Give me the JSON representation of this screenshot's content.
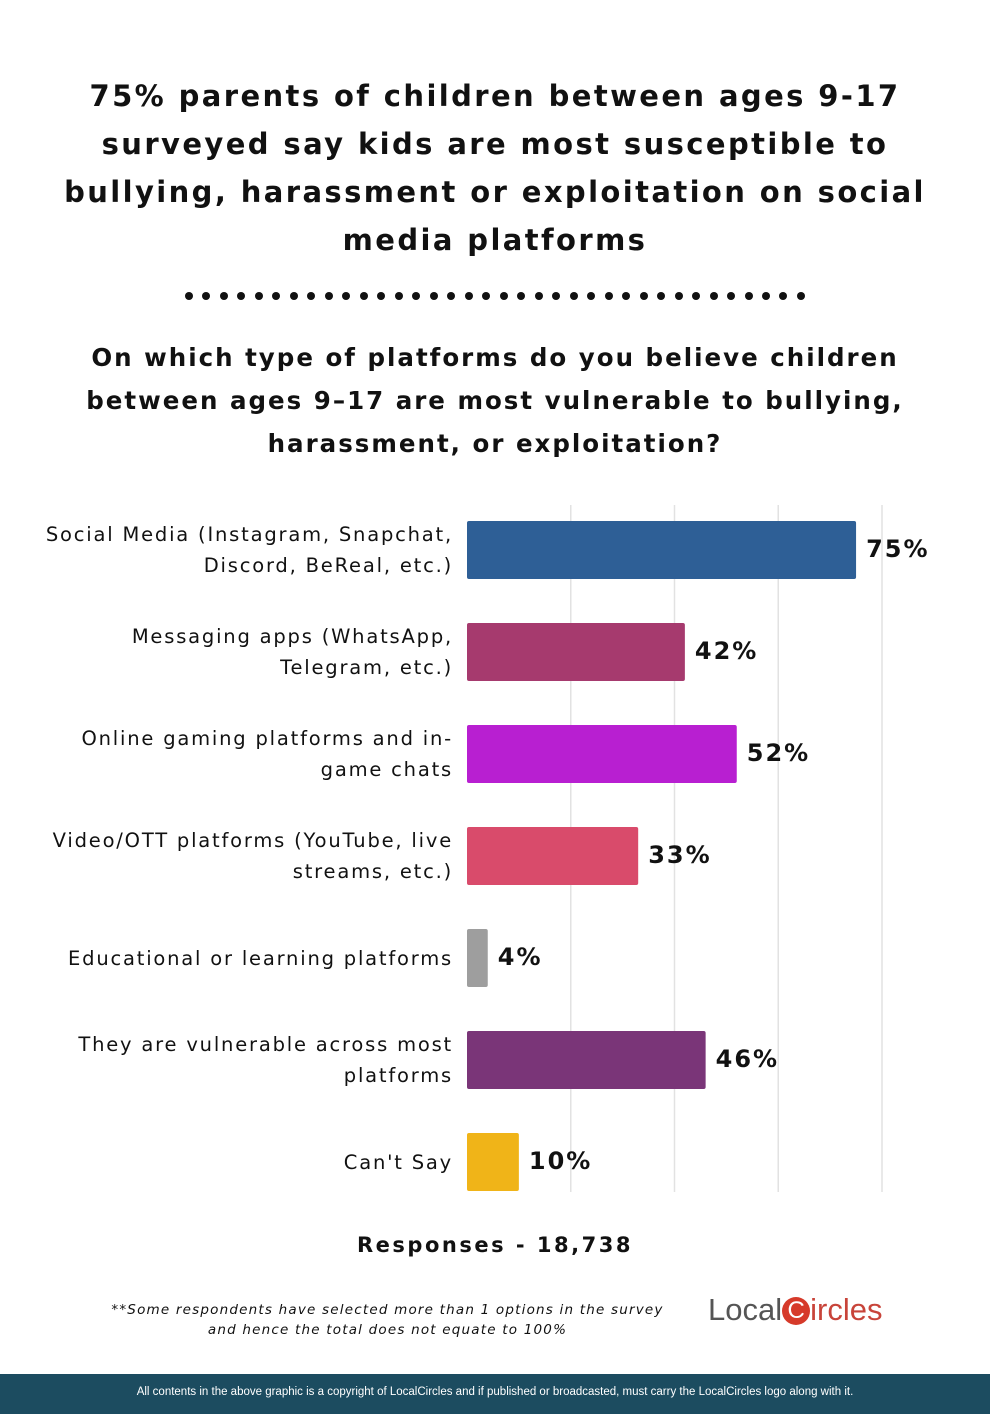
{
  "header": {
    "title": "75% parents of children between ages 9-17 surveyed say kids are most susceptible to bullying, harassment or exploitation on social media platforms"
  },
  "chart_data": {
    "type": "bar",
    "orientation": "horizontal",
    "title": "On which type of platforms do you believe children between ages 9–17 are most vulnerable to bullying, harassment, or exploitation?",
    "categories": [
      "Social Media (Instagram, Snapchat, Discord, BeReal, etc.)",
      "Messaging apps (WhatsApp, Telegram, etc.)",
      "Online gaming platforms and in-game chats",
      "Video/OTT platforms (YouTube, live streams, etc.)",
      "Educational or learning platforms",
      "They are vulnerable across most platforms",
      "Can't Say"
    ],
    "values": [
      75,
      42,
      52,
      33,
      4,
      46,
      10
    ],
    "data_labels": [
      "75%",
      "42%",
      "52%",
      "33%",
      "4%",
      "46%",
      "10%"
    ],
    "colors": [
      "#2e5f96",
      "#a63a6e",
      "#b81fd1",
      "#d94b6b",
      "#9e9e9e",
      "#7a3578",
      "#f0b418"
    ],
    "xlim": [
      0,
      80
    ],
    "grid": true,
    "gridline_values": [
      20,
      40,
      60,
      80
    ]
  },
  "responses": "Responses - 18,738",
  "note": "**Some respondents have selected more than 1 options in the survey and hence the total does not equate to 100%",
  "logo": "LocalCircles",
  "footer": "All contents in the above graphic is a copyright of LocalCircles and if published or broadcasted, must carry the LocalCircles logo along with it."
}
